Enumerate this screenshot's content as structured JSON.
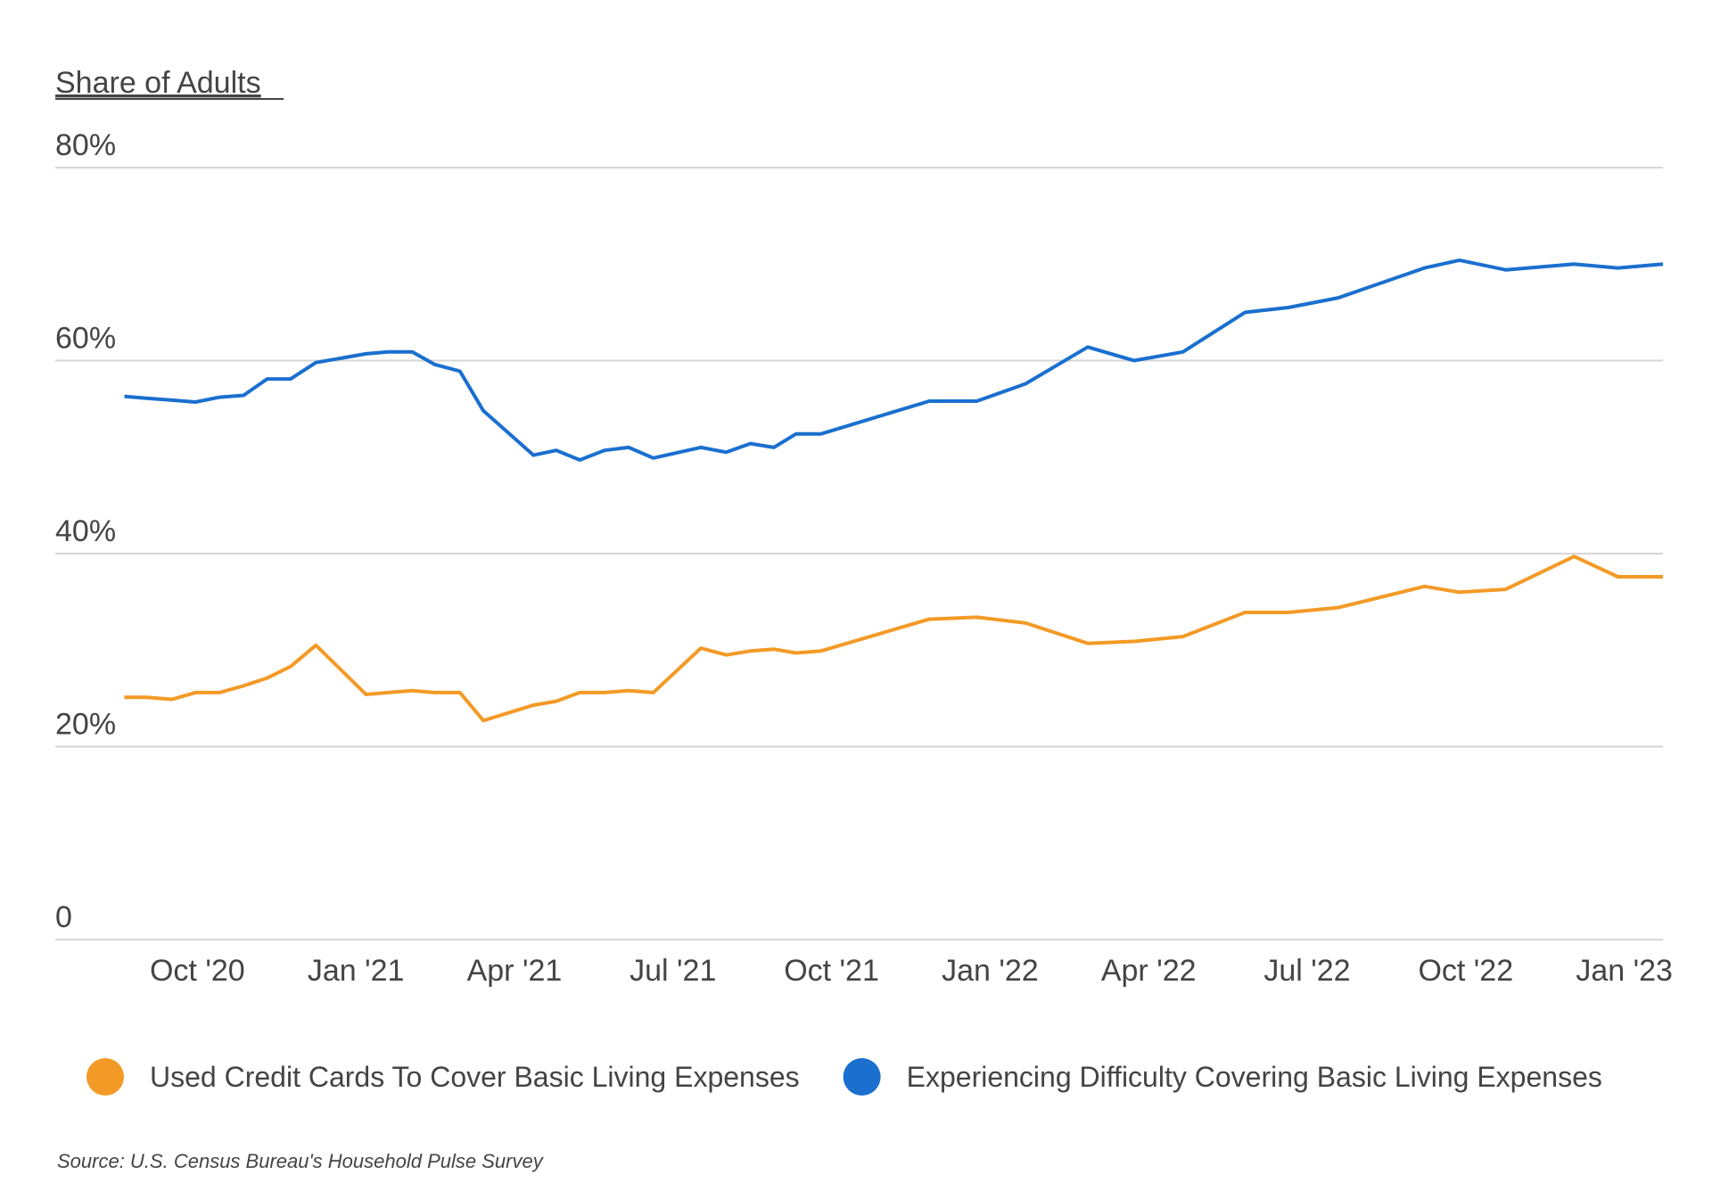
{
  "chart_data": {
    "type": "line",
    "title": "Share of Adults",
    "source": "Source: U.S. Census Bureau's Household Pulse Survey",
    "x": [
      2020.635,
      2020.67,
      2020.71,
      2020.747,
      2020.785,
      2020.823,
      2020.86,
      2020.897,
      2020.937,
      2021.016,
      2021.051,
      2021.089,
      2021.124,
      2021.164,
      2021.201,
      2021.28,
      2021.316,
      2021.353,
      2021.392,
      2021.43,
      2021.469,
      2021.544,
      2021.584,
      2021.622,
      2021.659,
      2021.694,
      2021.733,
      2021.904,
      2021.979,
      2022.056,
      2022.154,
      2022.227,
      2022.304,
      2022.402,
      2022.47,
      2022.549,
      2022.685,
      2022.74,
      2022.813,
      2022.921,
      2022.99,
      2023.061
    ],
    "series": [
      {
        "name": "Used Credit Cards To Cover Basic Living Expenses",
        "color": "#f39a26",
        "values": [
          25.1,
          25.1,
          24.9,
          25.6,
          25.6,
          26.3,
          27.1,
          28.3,
          30.5,
          25.4,
          25.6,
          25.8,
          25.6,
          25.6,
          22.7,
          24.3,
          24.7,
          25.6,
          25.6,
          25.8,
          25.6,
          30.2,
          29.5,
          29.9,
          30.1,
          29.7,
          29.9,
          33.2,
          33.4,
          32.8,
          30.7,
          30.9,
          31.4,
          33.9,
          33.9,
          34.4,
          36.6,
          36.0,
          36.3,
          39.7,
          37.6,
          37.6
        ]
      },
      {
        "name": "Experiencing Difficulty Covering Basic Living Expenses",
        "color": "#1a6fcf",
        "values": [
          56.3,
          56.1,
          55.9,
          55.7,
          56.2,
          56.4,
          58.1,
          58.1,
          59.8,
          60.7,
          60.9,
          60.9,
          59.6,
          58.9,
          54.8,
          50.2,
          50.7,
          49.7,
          50.7,
          51.0,
          49.9,
          51.0,
          50.5,
          51.4,
          51.0,
          52.4,
          52.4,
          55.8,
          55.8,
          57.6,
          61.4,
          60.0,
          60.9,
          65.0,
          65.5,
          66.5,
          69.6,
          70.4,
          69.4,
          70.0,
          69.6,
          70.0
        ]
      }
    ],
    "xlim": [
      2020.526,
      2023.061
    ],
    "xticks": [
      {
        "value": 2020.75,
        "label": "Oct '20"
      },
      {
        "value": 2021.0,
        "label": "Jan '21"
      },
      {
        "value": 2021.25,
        "label": "Apr '21"
      },
      {
        "value": 2021.5,
        "label": "Jul '21"
      },
      {
        "value": 2021.75,
        "label": "Oct '21"
      },
      {
        "value": 2022.0,
        "label": "Jan '22"
      },
      {
        "value": 2022.25,
        "label": "Apr '22"
      },
      {
        "value": 2022.5,
        "label": "Jul '22"
      },
      {
        "value": 2022.75,
        "label": "Oct '22"
      },
      {
        "value": 2023.0,
        "label": "Jan '23"
      }
    ],
    "ylim": [
      0,
      80
    ],
    "yticks": [
      0,
      {
        "value": 20,
        "label": "20%"
      },
      {
        "value": 40,
        "label": "40%"
      },
      {
        "value": 60,
        "label": "60%"
      },
      {
        "value": 80,
        "label": "80%"
      }
    ],
    "grid": true
  }
}
